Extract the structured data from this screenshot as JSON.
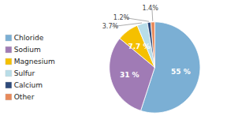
{
  "chart_data": {
    "type": "pie",
    "categories": [
      "Chloride",
      "Sodium",
      "Magnesium",
      "Sulfur",
      "Calcium",
      "Other"
    ],
    "values": [
      55,
      31,
      7.7,
      3.7,
      1.2,
      1.4
    ],
    "value_labels": [
      "55 %",
      "31 %",
      "7.7 %",
      "3.7%",
      "1.2%",
      "1.4%"
    ],
    "colors": [
      "#7BAFD4",
      "#A07BB5",
      "#F5C000",
      "#B8DDE8",
      "#2E4A7A",
      "#E8895A"
    ],
    "data_labels": true,
    "legend": "left"
  }
}
